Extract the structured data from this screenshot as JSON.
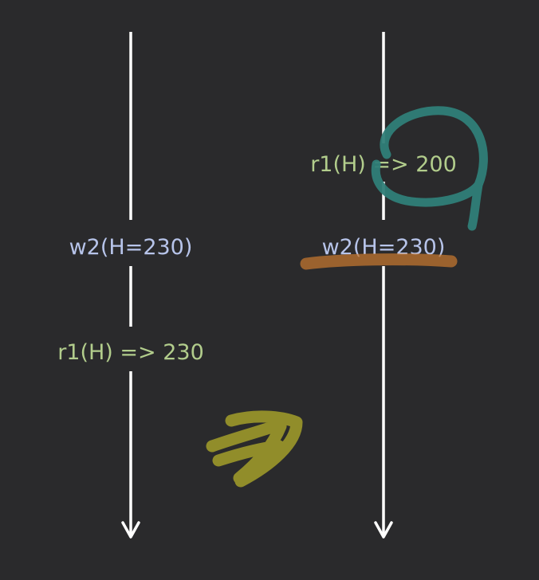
{
  "colors": {
    "background": "#2a2a2c",
    "timeline": "#ffffff",
    "write_label": "#b7c4ea",
    "read_label": "#b2cd8c",
    "circle_annotation": "#2f7e78",
    "underline_annotation": "#c7782f",
    "arrow_annotation": "#a8a42a"
  },
  "timelines": [
    {
      "events": [
        {
          "kind": "write",
          "text": "w2(H=230)"
        },
        {
          "kind": "read",
          "text": "r1(H) => 230"
        }
      ]
    },
    {
      "events": [
        {
          "kind": "read",
          "text": "r1(H) => 200"
        },
        {
          "kind": "write",
          "text": "w2(H=230)"
        }
      ]
    }
  ],
  "annotations": [
    {
      "kind": "circle",
      "shape": "circle-with-tail"
    },
    {
      "kind": "underline",
      "shape": "highlighter-underline"
    },
    {
      "kind": "arrow",
      "shape": "arrow-scribble"
    }
  ]
}
